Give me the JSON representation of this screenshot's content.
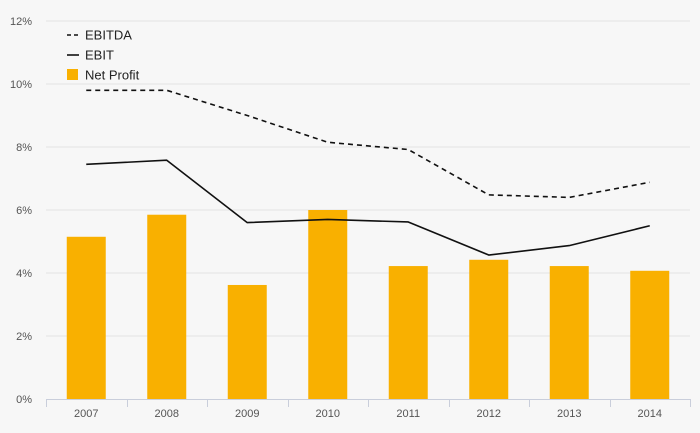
{
  "chart_data": {
    "type": "bar",
    "title": "",
    "xlabel": "",
    "ylabel": "",
    "categories": [
      "2007",
      "2008",
      "2009",
      "2010",
      "2011",
      "2012",
      "2013",
      "2014"
    ],
    "ylim": [
      0,
      12
    ],
    "y_ticks": [
      0,
      2,
      4,
      6,
      8,
      10,
      12
    ],
    "y_tick_labels": [
      "0%",
      "2%",
      "4%",
      "6%",
      "8%",
      "10%",
      "12%"
    ],
    "grid": true,
    "legend_position": "top-left",
    "series": [
      {
        "name": "Net Profit",
        "type": "bar",
        "color": "#f9b000",
        "values": [
          5.15,
          5.85,
          3.62,
          6.0,
          4.22,
          4.42,
          4.22,
          4.07
        ]
      },
      {
        "name": "EBITDA",
        "type": "line",
        "style": "dashed",
        "color": "#111111",
        "values": [
          9.8,
          9.8,
          9.0,
          8.15,
          7.92,
          6.48,
          6.4,
          6.88
        ]
      },
      {
        "name": "EBIT",
        "type": "line",
        "style": "solid",
        "color": "#111111",
        "values": [
          7.45,
          7.58,
          5.6,
          5.7,
          5.62,
          4.57,
          4.87,
          5.5
        ]
      }
    ],
    "legend": [
      {
        "name": "EBITDA",
        "marker": "dashed-line"
      },
      {
        "name": "EBIT",
        "marker": "solid-line"
      },
      {
        "name": "Net Profit",
        "marker": "square"
      }
    ]
  }
}
